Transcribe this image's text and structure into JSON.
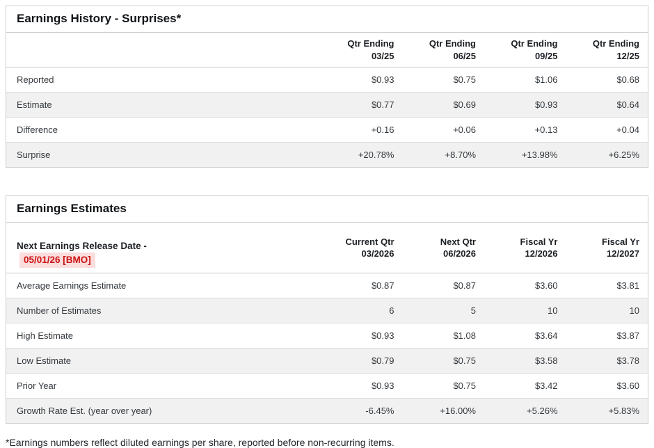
{
  "colors": {
    "positive_green": "#2e9584",
    "negative_red": "#c13b3b",
    "release_date_red": "#cc1111",
    "release_date_highlight": "#fbdddd",
    "stripe_gray": "#f1f1f1",
    "border_gray": "#cccccc"
  },
  "history": {
    "title": "Earnings History - Surprises*",
    "columns": [
      "Qtr Ending\n03/25",
      "Qtr Ending\n06/25",
      "Qtr Ending\n09/25",
      "Qtr Ending\n12/25"
    ],
    "rows": [
      {
        "label": "Reported",
        "values": [
          "$0.93",
          "$0.75",
          "$1.06",
          "$0.68"
        ]
      },
      {
        "label": "Estimate",
        "values": [
          "$0.77",
          "$0.69",
          "$0.93",
          "$0.64"
        ]
      },
      {
        "label": "Difference",
        "values": [
          "+0.16",
          "+0.06",
          "+0.13",
          "+0.04"
        ]
      },
      {
        "label": "Surprise",
        "values": [
          "+20.78%",
          "+8.70%",
          "+13.98%",
          "+6.25%"
        ]
      }
    ]
  },
  "estimates": {
    "title": "Earnings Estimates",
    "release_label": "Next Earnings Release Date -",
    "release_date": "05/01/26 [BMO]",
    "columns": [
      "Current Qtr\n03/2026",
      "Next Qtr\n06/2026",
      "Fiscal Yr\n12/2026",
      "Fiscal Yr\n12/2027"
    ],
    "rows": [
      {
        "label": "Average Earnings Estimate",
        "values": [
          "$0.87",
          "$0.87",
          "$3.60",
          "$3.81"
        ]
      },
      {
        "label": "Number of Estimates",
        "values": [
          "6",
          "5",
          "10",
          "10"
        ]
      },
      {
        "label": "High Estimate",
        "values": [
          "$0.93",
          "$1.08",
          "$3.64",
          "$3.87"
        ]
      },
      {
        "label": "Low Estimate",
        "values": [
          "$0.79",
          "$0.75",
          "$3.58",
          "$3.78"
        ]
      },
      {
        "label": "Prior Year",
        "values": [
          "$0.93",
          "$0.75",
          "$3.42",
          "$3.60"
        ]
      },
      {
        "label": "Growth Rate Est. (year over year)",
        "values": [
          "-6.45%",
          "+16.00%",
          "+5.26%",
          "+5.83%"
        ]
      }
    ]
  },
  "footnote": "*Earnings numbers reflect diluted earnings per share, reported before non-recurring items."
}
